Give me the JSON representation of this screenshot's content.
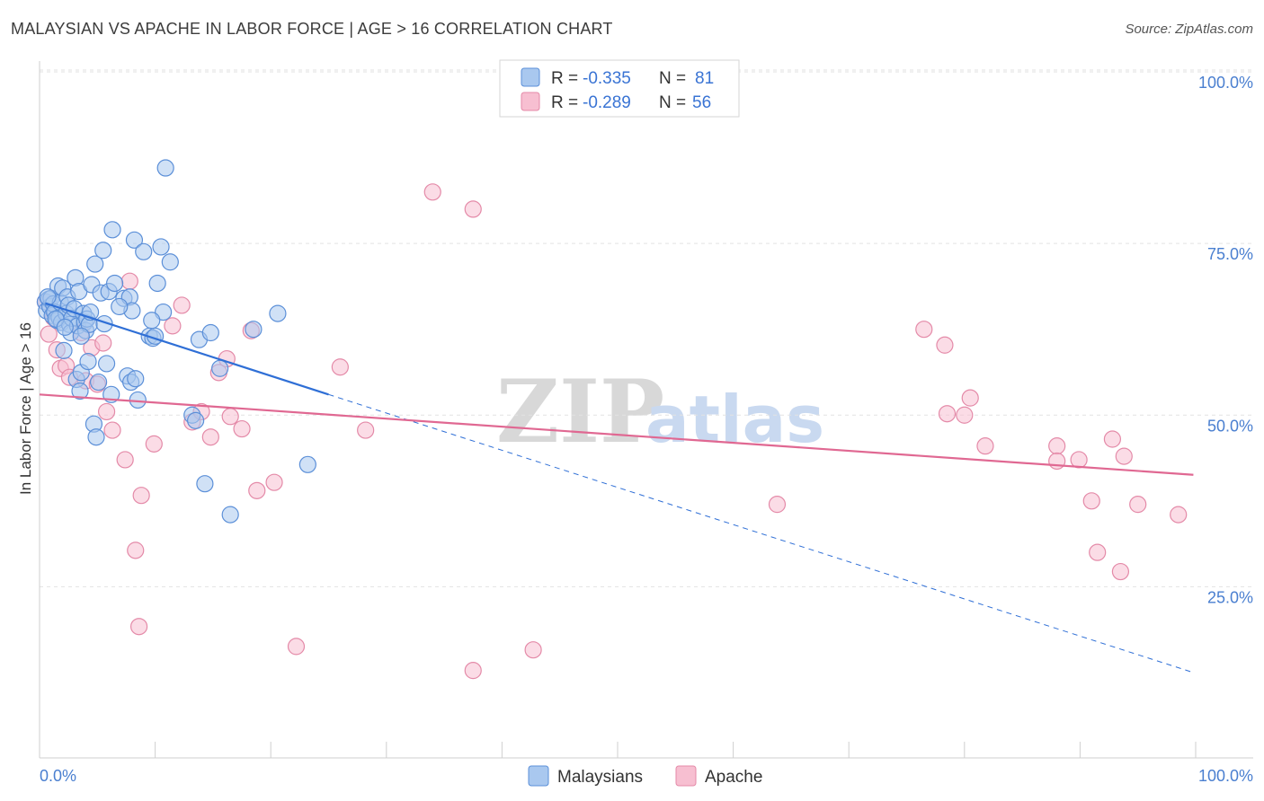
{
  "header": {
    "title": "MALAYSIAN VS APACHE IN LABOR FORCE | AGE > 16 CORRELATION CHART",
    "source": "Source: ZipAtlas.com"
  },
  "watermark": {
    "part1": "ZIP",
    "part2": "atlas"
  },
  "legend": {
    "rows": [
      {
        "r_label": "R = ",
        "r_value": "-0.335",
        "n_label": "N = ",
        "n_value": "81"
      },
      {
        "r_label": "R = ",
        "r_value": "-0.289",
        "n_label": "N = ",
        "n_value": "56"
      }
    ]
  },
  "bottom_legend": {
    "items": [
      "Malaysians",
      "Apache"
    ]
  },
  "colors": {
    "malaysians_fill": "#a9c8ef",
    "malaysians_stroke": "#5b8fd8",
    "malaysians_line": "#2f6fd6",
    "apache_fill": "#f7bfd1",
    "apache_stroke": "#e48aa8",
    "apache_line": "#e06892",
    "grid": "#e2e2e2",
    "tick_text": "#4a7fd0"
  },
  "chart_data": {
    "type": "scatter",
    "title": "MALAYSIAN VS APACHE IN LABOR FORCE | AGE > 16 CORRELATION CHART",
    "xlabel": "",
    "ylabel": "In Labor Force | Age > 16",
    "xlim": [
      0,
      100
    ],
    "ylim": [
      0,
      105
    ],
    "x_tick_labels": [
      "0.0%",
      "100.0%"
    ],
    "y_ticks": [
      25,
      50,
      75,
      100
    ],
    "y_tick_labels": [
      "25.0%",
      "50.0%",
      "75.0%",
      "100.0%"
    ],
    "grid": "horizontal-dashed",
    "legend_position": "top-center",
    "series": [
      {
        "name": "Malaysians",
        "r": -0.335,
        "n": 81,
        "trend": {
          "x_start": 0.5,
          "y_start": 66.3,
          "x_solid_end": 25.0,
          "y_solid_end": 53.0,
          "x_end": 99.8,
          "y_end": 12.5
        },
        "points": [
          [
            0.5,
            66.5
          ],
          [
            0.6,
            65.2
          ],
          [
            0.8,
            66.9
          ],
          [
            0.9,
            65.8
          ],
          [
            1.0,
            67.0
          ],
          [
            1.1,
            64.5
          ],
          [
            1.2,
            66.2
          ],
          [
            1.3,
            65.0
          ],
          [
            1.5,
            63.8
          ],
          [
            1.6,
            68.8
          ],
          [
            1.7,
            64.2
          ],
          [
            1.8,
            66.4
          ],
          [
            1.9,
            63.5
          ],
          [
            2.0,
            68.5
          ],
          [
            2.1,
            59.4
          ],
          [
            2.3,
            64.8
          ],
          [
            2.4,
            67.2
          ],
          [
            2.5,
            66.0
          ],
          [
            2.6,
            63.2
          ],
          [
            2.7,
            62.0
          ],
          [
            2.8,
            64.1
          ],
          [
            3.0,
            65.5
          ],
          [
            3.1,
            70.0
          ],
          [
            3.2,
            55.2
          ],
          [
            3.3,
            63.0
          ],
          [
            3.4,
            68.0
          ],
          [
            3.5,
            53.5
          ],
          [
            3.6,
            56.2
          ],
          [
            3.8,
            64.8
          ],
          [
            3.9,
            63.5
          ],
          [
            4.0,
            62.3
          ],
          [
            4.1,
            64.0
          ],
          [
            4.2,
            57.8
          ],
          [
            4.3,
            63.2
          ],
          [
            4.4,
            65.0
          ],
          [
            4.5,
            69.0
          ],
          [
            4.7,
            48.7
          ],
          [
            4.8,
            72.0
          ],
          [
            4.9,
            46.8
          ],
          [
            5.1,
            54.8
          ],
          [
            5.3,
            67.8
          ],
          [
            5.5,
            74.0
          ],
          [
            5.6,
            63.3
          ],
          [
            5.8,
            57.5
          ],
          [
            6.0,
            68.0
          ],
          [
            6.2,
            53.0
          ],
          [
            6.3,
            77.0
          ],
          [
            6.5,
            69.2
          ],
          [
            7.3,
            67.0
          ],
          [
            7.6,
            55.7
          ],
          [
            7.8,
            67.2
          ],
          [
            7.9,
            54.8
          ],
          [
            8.0,
            65.2
          ],
          [
            8.2,
            75.5
          ],
          [
            8.3,
            55.3
          ],
          [
            8.5,
            52.2
          ],
          [
            9.0,
            73.8
          ],
          [
            9.5,
            61.5
          ],
          [
            9.8,
            61.2
          ],
          [
            10.0,
            61.5
          ],
          [
            10.2,
            69.2
          ],
          [
            10.5,
            74.5
          ],
          [
            10.7,
            65.0
          ],
          [
            10.9,
            86.0
          ],
          [
            11.3,
            72.3
          ],
          [
            13.2,
            50.0
          ],
          [
            13.5,
            49.2
          ],
          [
            13.8,
            61.0
          ],
          [
            14.3,
            40.0
          ],
          [
            14.8,
            62.0
          ],
          [
            15.6,
            56.8
          ],
          [
            16.5,
            35.5
          ],
          [
            18.5,
            62.5
          ],
          [
            20.6,
            64.8
          ],
          [
            23.2,
            42.8
          ],
          [
            3.6,
            61.5
          ],
          [
            6.9,
            65.8
          ],
          [
            1.4,
            64.0
          ],
          [
            2.2,
            62.8
          ],
          [
            0.7,
            67.2
          ],
          [
            9.7,
            63.8
          ]
        ]
      },
      {
        "name": "Apache",
        "r": -0.289,
        "n": 56,
        "trend": {
          "x_start": 0.0,
          "y_start": 53.0,
          "x_end": 99.8,
          "y_end": 41.3
        },
        "points": [
          [
            0.5,
            66.5
          ],
          [
            0.8,
            61.8
          ],
          [
            1.2,
            64.2
          ],
          [
            1.5,
            59.5
          ],
          [
            1.8,
            56.8
          ],
          [
            2.3,
            57.2
          ],
          [
            2.6,
            55.5
          ],
          [
            3.6,
            62.0
          ],
          [
            4.0,
            55.0
          ],
          [
            4.5,
            59.8
          ],
          [
            5.0,
            54.5
          ],
          [
            5.5,
            60.5
          ],
          [
            5.8,
            50.5
          ],
          [
            6.3,
            47.8
          ],
          [
            7.4,
            43.5
          ],
          [
            7.8,
            69.5
          ],
          [
            8.3,
            30.3
          ],
          [
            8.6,
            19.2
          ],
          [
            8.8,
            38.3
          ],
          [
            9.9,
            45.8
          ],
          [
            11.5,
            63.0
          ],
          [
            12.3,
            66.0
          ],
          [
            13.2,
            49.0
          ],
          [
            14.0,
            50.5
          ],
          [
            14.8,
            46.8
          ],
          [
            15.5,
            56.2
          ],
          [
            16.2,
            58.2
          ],
          [
            16.5,
            49.8
          ],
          [
            17.5,
            48.0
          ],
          [
            18.3,
            62.3
          ],
          [
            18.8,
            39.0
          ],
          [
            20.3,
            40.2
          ],
          [
            22.2,
            16.3
          ],
          [
            26.0,
            57.0
          ],
          [
            28.2,
            47.8
          ],
          [
            34.0,
            82.5
          ],
          [
            37.5,
            80.0
          ],
          [
            37.5,
            12.8
          ],
          [
            42.7,
            15.8
          ],
          [
            63.8,
            37.0
          ],
          [
            76.5,
            62.5
          ],
          [
            78.3,
            60.2
          ],
          [
            78.5,
            50.2
          ],
          [
            80.0,
            50.0
          ],
          [
            80.5,
            52.5
          ],
          [
            81.8,
            45.5
          ],
          [
            88.0,
            45.5
          ],
          [
            88.0,
            43.3
          ],
          [
            89.9,
            43.5
          ],
          [
            91.0,
            37.5
          ],
          [
            91.5,
            30.0
          ],
          [
            92.8,
            46.5
          ],
          [
            93.5,
            27.2
          ],
          [
            93.8,
            44.0
          ],
          [
            95.0,
            37.0
          ],
          [
            98.5,
            35.5
          ]
        ]
      }
    ]
  }
}
